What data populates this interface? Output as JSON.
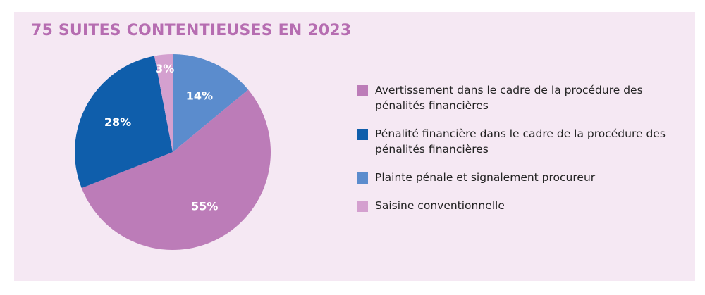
{
  "chart_data": {
    "type": "pie",
    "title": "75 SUITES CONTENTIEUSES EN 2023",
    "slices": [
      {
        "label": "Plainte pénale et signalement procureur",
        "value": 14,
        "display": "14%",
        "color": "#5b8ccd"
      },
      {
        "label": "Avertissement dans le cadre de la procédure des pénalités financières",
        "value": 55,
        "display": "55%",
        "color": "#bc7cb8"
      },
      {
        "label": "Pénalité financière dans le cadre de la procédure des pénalités financières",
        "value": 28,
        "display": "28%",
        "color": "#0f5eab"
      },
      {
        "label": "Saisine conventionnelle",
        "value": 3,
        "display": "3%",
        "color": "#d4a0cf"
      }
    ],
    "legend": [
      {
        "label": "Avertissement dans le cadre de la procédure des pénalités financières",
        "color": "#bc7cb8"
      },
      {
        "label": "Pénalité financière dans le cadre de la procédure des pénalités financières",
        "color": "#0f5eab"
      },
      {
        "label": "Plainte pénale et signalement procureur",
        "color": "#5b8ccd"
      },
      {
        "label": "Saisine conventionnelle",
        "color": "#d4a0cf"
      }
    ],
    "legend_position": "right"
  }
}
